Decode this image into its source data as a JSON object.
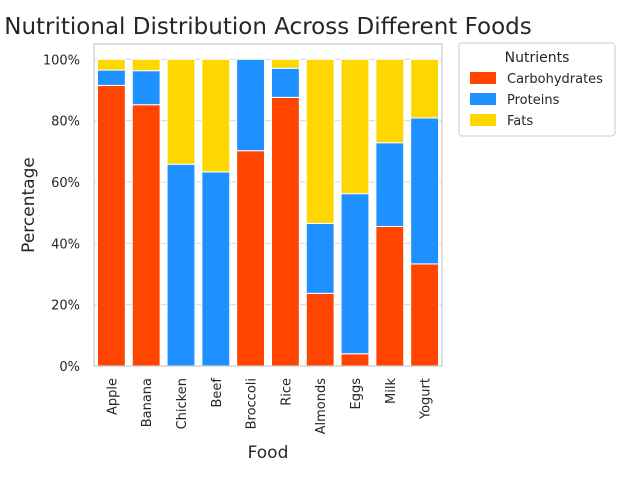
{
  "chart_data": {
    "type": "bar",
    "stacked": true,
    "title": "Nutritional Distribution Across Different Foods",
    "xlabel": "Food",
    "ylabel": "Percentage",
    "ylim": [
      0,
      105
    ],
    "yticks": [
      0,
      20,
      40,
      60,
      80,
      100
    ],
    "ytick_labels": [
      "0%",
      "20%",
      "40%",
      "60%",
      "80%",
      "100%"
    ],
    "grid": true,
    "legend": {
      "title": "Nutrients",
      "placement": "outside-right-top"
    },
    "categories": [
      "Apple",
      "Banana",
      "Chicken",
      "Beef",
      "Broccoli",
      "Rice",
      "Almonds",
      "Eggs",
      "Milk",
      "Yogurt"
    ],
    "series": [
      {
        "name": "Carbohydrates",
        "color": "#FF4500",
        "values": [
          91.5,
          85.2,
          0,
          0,
          70.2,
          87.6,
          23.7,
          4.0,
          45.5,
          33.3
        ]
      },
      {
        "name": "Proteins",
        "color": "#1E90FF",
        "values": [
          5.0,
          11.1,
          65.8,
          63.3,
          29.8,
          9.5,
          22.8,
          52.2,
          27.3,
          47.6
        ]
      },
      {
        "name": "Fats",
        "color": "#FFD700",
        "values": [
          3.5,
          3.7,
          34.2,
          36.7,
          0,
          2.9,
          53.5,
          43.8,
          27.2,
          19.1
        ]
      }
    ]
  }
}
